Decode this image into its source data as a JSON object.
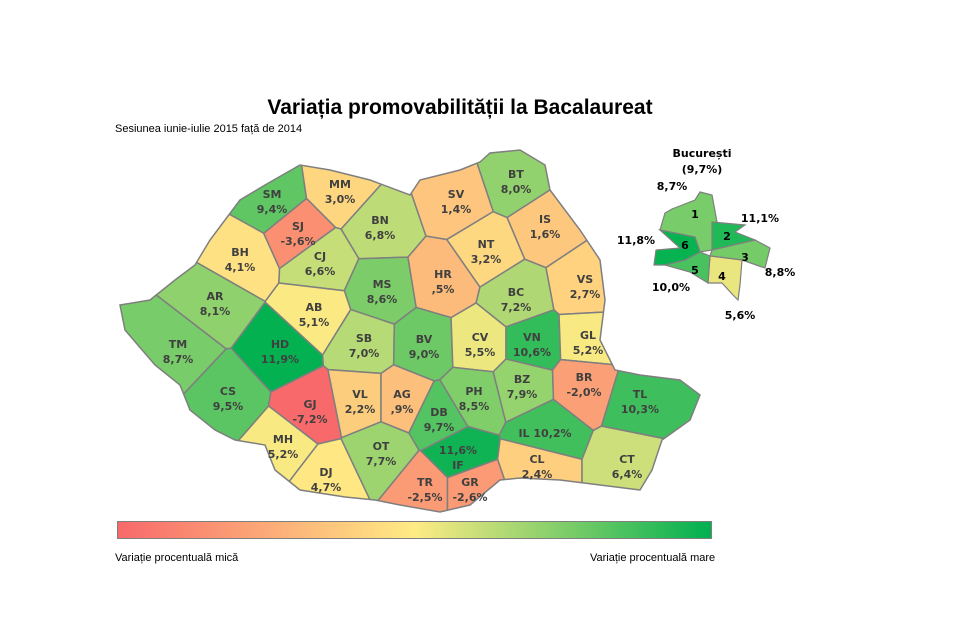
{
  "title": "Variația promovabilității la Bacalaureat",
  "subtitle": "Sesiunea iunie-iulie 2015 față de 2014",
  "legend": {
    "low_label": "Variație procentuală mică",
    "high_label": "Variație procentuală mare",
    "colors": [
      "#f8696b",
      "#ffeb84",
      "#00b050"
    ]
  },
  "counties": [
    {
      "code": "SM",
      "value": "9,4%",
      "v": 9.4
    },
    {
      "code": "MM",
      "value": "3,0%",
      "v": 3.0
    },
    {
      "code": "BT",
      "value": "8,0%",
      "v": 8.0
    },
    {
      "code": "SV",
      "value": "1,4%",
      "v": 1.4
    },
    {
      "code": "BH",
      "value": "4,1%",
      "v": 4.1
    },
    {
      "code": "SJ",
      "value": "-3,6%",
      "v": -3.6
    },
    {
      "code": "BN",
      "value": "6,8%",
      "v": 6.8
    },
    {
      "code": "IS",
      "value": "1,6%",
      "v": 1.6
    },
    {
      "code": "NT",
      "value": "3,2%",
      "v": 3.2
    },
    {
      "code": "CJ",
      "value": "6,6%",
      "v": 6.6
    },
    {
      "code": "MS",
      "value": "8,6%",
      "v": 8.6
    },
    {
      "code": "HR",
      "value": ",5%",
      "v": 0.5
    },
    {
      "code": "BC",
      "value": "7,2%",
      "v": 7.2
    },
    {
      "code": "VS",
      "value": "2,7%",
      "v": 2.7
    },
    {
      "code": "AR",
      "value": "8,1%",
      "v": 8.1
    },
    {
      "code": "AB",
      "value": "5,1%",
      "v": 5.1
    },
    {
      "code": "HD",
      "value": "11,9%",
      "v": 11.9
    },
    {
      "code": "SB",
      "value": "7,0%",
      "v": 7.0
    },
    {
      "code": "BV",
      "value": "9,0%",
      "v": 9.0
    },
    {
      "code": "CV",
      "value": "5,5%",
      "v": 5.5
    },
    {
      "code": "VN",
      "value": "10,6%",
      "v": 10.6
    },
    {
      "code": "GL",
      "value": "5,2%",
      "v": 5.2
    },
    {
      "code": "TM",
      "value": "8,7%",
      "v": 8.7
    },
    {
      "code": "CS",
      "value": "9,5%",
      "v": 9.5
    },
    {
      "code": "GJ",
      "value": "-7,2%",
      "v": -7.2
    },
    {
      "code": "VL",
      "value": "2,2%",
      "v": 2.2
    },
    {
      "code": "AG",
      "value": ",9%",
      "v": 0.9
    },
    {
      "code": "DB",
      "value": "9,7%",
      "v": 9.7
    },
    {
      "code": "PH",
      "value": "8,5%",
      "v": 8.5
    },
    {
      "code": "BZ",
      "value": "7,9%",
      "v": 7.9
    },
    {
      "code": "BR",
      "value": "-2,0%",
      "v": -2.0
    },
    {
      "code": "TL",
      "value": "10,3%",
      "v": 10.3
    },
    {
      "code": "MH",
      "value": "5,2%",
      "v": 5.2
    },
    {
      "code": "DJ",
      "value": "4,7%",
      "v": 4.7
    },
    {
      "code": "OT",
      "value": "7,7%",
      "v": 7.7
    },
    {
      "code": "TR",
      "value": "-2,5%",
      "v": -2.5
    },
    {
      "code": "GR",
      "value": "-2,6%",
      "v": -2.6
    },
    {
      "code": "IF",
      "value": "11,6%",
      "v": 11.6
    },
    {
      "code": "IL",
      "value": "10,2%",
      "v": 10.2
    },
    {
      "code": "CL",
      "value": "2,4%",
      "v": 2.4
    },
    {
      "code": "CT",
      "value": "6,4%",
      "v": 6.4
    }
  ],
  "bucharest": {
    "title": "București",
    "total": "(9,7%)",
    "sectors": [
      {
        "label": "1",
        "value": "8,7%",
        "v": 8.7
      },
      {
        "label": "2",
        "value": "11,1%",
        "v": 11.1
      },
      {
        "label": "3",
        "value": "8,8%",
        "v": 8.8
      },
      {
        "label": "4",
        "value": "5,6%",
        "v": 5.6
      },
      {
        "label": "5",
        "value": "10,0%",
        "v": 10.0
      },
      {
        "label": "6",
        "value": "11,8%",
        "v": 11.8
      }
    ]
  }
}
